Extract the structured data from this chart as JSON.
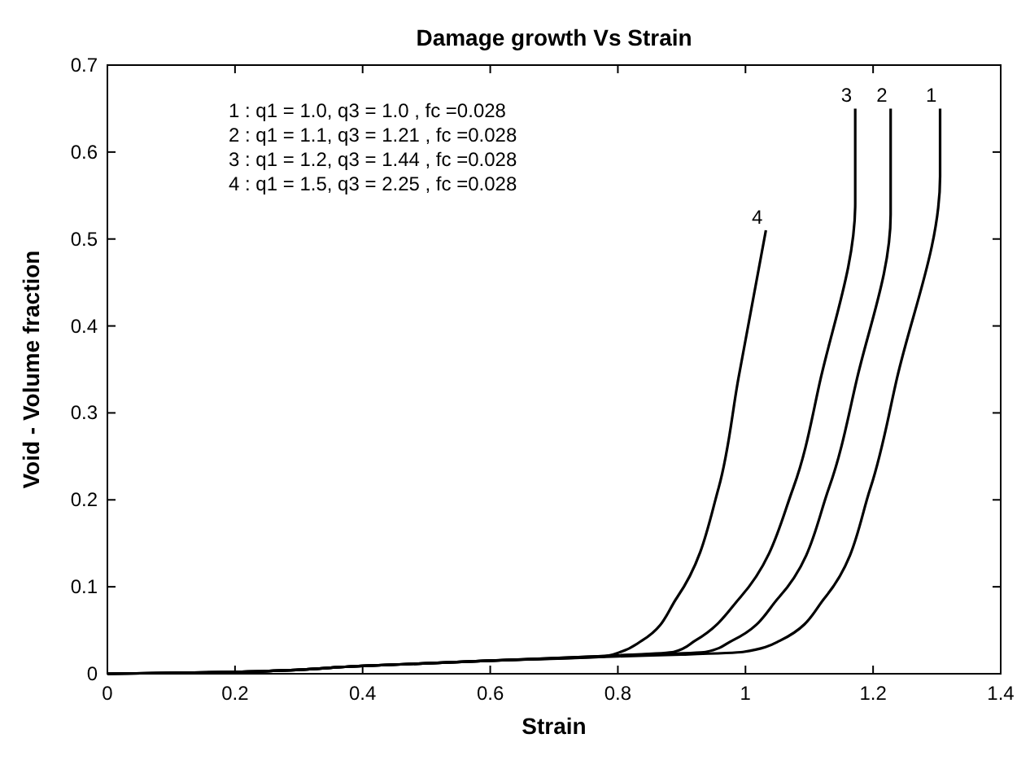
{
  "chart_data": {
    "type": "line",
    "title": "Damage growth Vs Strain",
    "xlabel": "Strain",
    "ylabel": "Void - Volume fraction",
    "xlim": [
      0,
      1.4
    ],
    "ylim": [
      0,
      0.7
    ],
    "xticks": [
      0,
      0.2,
      0.4,
      0.6,
      0.8,
      1,
      1.2,
      1.4
    ],
    "yticks": [
      0,
      0.1,
      0.2,
      0.3,
      0.4,
      0.5,
      0.6,
      0.7
    ],
    "grid": false,
    "legend": "top right",
    "marker": "none",
    "line_style": "solid",
    "series": [
      {
        "name": "1",
        "color": "#000000",
        "x": [
          0,
          0.2,
          0.4,
          0.6,
          0.8,
          0.9,
          0.996,
          1.054,
          1.125,
          1.196,
          1.2375,
          1.305,
          1.305
        ],
        "values": [
          0,
          0.002,
          0.009,
          0.015,
          0.02,
          0.022,
          0.025,
          0.038,
          0.088,
          0.214,
          0.34,
          0.572,
          0.65
        ]
      },
      {
        "name": "2",
        "color": "#000000",
        "x": [
          0,
          0.2,
          0.4,
          0.6,
          0.8,
          0.9375,
          0.979,
          1.0525,
          1.131,
          1.175,
          1.2275,
          1.2275
        ],
        "values": [
          0,
          0.002,
          0.009,
          0.015,
          0.021,
          0.025,
          0.038,
          0.088,
          0.214,
          0.34,
          0.528,
          0.65
        ]
      },
      {
        "name": "3",
        "color": "#000000",
        "x": [
          0,
          0.2,
          0.4,
          0.6,
          0.8,
          0.8875,
          0.921,
          0.992,
          1.075,
          1.118,
          1.172,
          1.172
        ],
        "values": [
          0,
          0.002,
          0.009,
          0.015,
          0.021,
          0.025,
          0.038,
          0.088,
          0.214,
          0.34,
          0.541,
          0.65
        ]
      },
      {
        "name": "4",
        "color": "#000000",
        "x": [
          0,
          0.2,
          0.4,
          0.6,
          0.78,
          0.804,
          0.8375,
          0.893,
          0.958,
          0.989,
          1.032
        ],
        "values": [
          0,
          0.002,
          0.009,
          0.015,
          0.02,
          0.025,
          0.038,
          0.088,
          0.214,
          0.34,
          0.51
        ]
      }
    ],
    "annotations": [
      "1 : q1 = 1.0, q3 = 1.0 ,  fc =0.028",
      "2 : q1 = 1.1, q3 = 1.21 , fc =0.028",
      "3 : q1 = 1.2, q3 = 1.44 , fc =0.028",
      "4 : q1 = 1.5, q3 = 2.25 , fc =0.028"
    ]
  }
}
